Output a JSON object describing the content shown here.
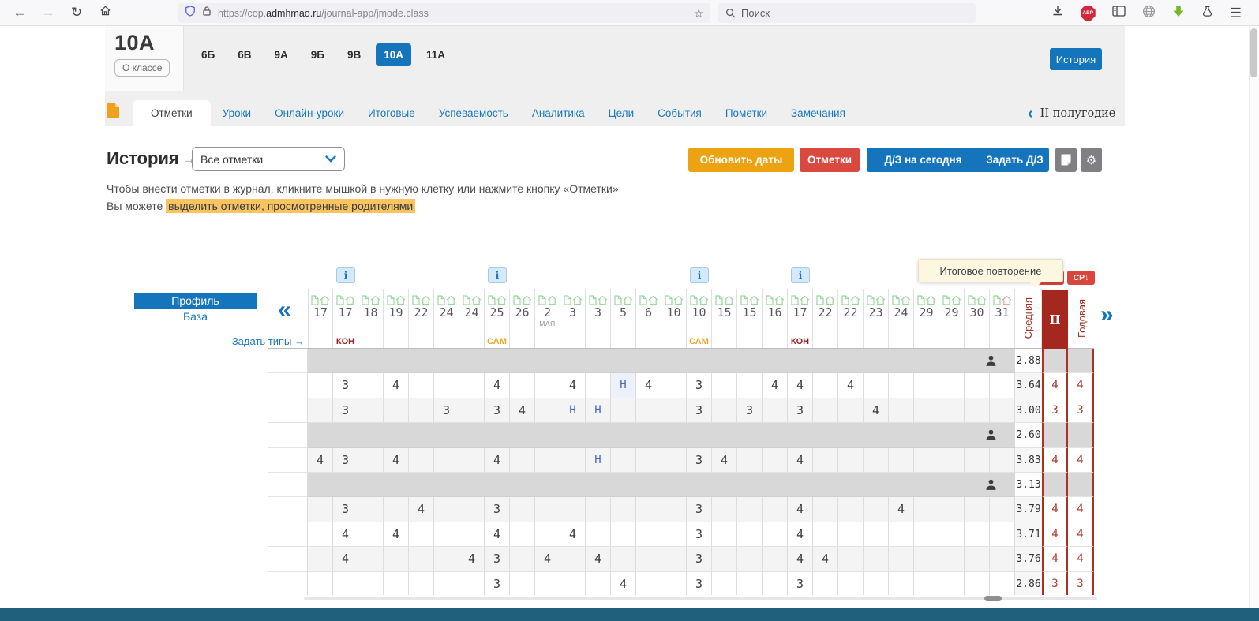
{
  "browser": {
    "url_prefix": "https://cop.",
    "url_domain": "admhmao.ru",
    "url_path": "/journal-app/jmode.class",
    "search_placeholder": "Поиск",
    "adblock_label": "ABP"
  },
  "class_header": {
    "class_name": "10А",
    "about_button": "О классе",
    "classes": [
      "6Б",
      "6В",
      "9А",
      "9Б",
      "9В",
      "10А",
      "11А"
    ],
    "active_class": "10А",
    "history_button": "История"
  },
  "nav": {
    "tabs": [
      "Отметки",
      "Уроки",
      "Онлайн-уроки",
      "Итоговые",
      "Успеваемость",
      "Аналитика",
      "Цели",
      "События",
      "Пометки",
      "Замечания"
    ],
    "active_tab": "Отметки",
    "period_prev_icon": "‹",
    "period_label": "II полугодие"
  },
  "toolbar": {
    "subject_title": "История",
    "arrow": "→",
    "filter_value": "Все отметки",
    "update_dates_button": "Обновить даты",
    "marks_button": "Отметки",
    "homework_today_button": "Д/З на сегодня",
    "assign_homework_button": "Задать Д/З"
  },
  "hints": {
    "line1": "Чтобы внести отметки в журнал, кликните мышкой в нужную клетку или нажмите кнопку «Отметки»",
    "line2_prefix": "Вы можете ",
    "line2_highlight": "выделить отметки, просмотренные родителями"
  },
  "journal": {
    "group_toggle": {
      "profile": "Профиль",
      "base": "База"
    },
    "set_types_link": "Задать типы →",
    "prev_icon": "«",
    "next_icon": "»",
    "info_badge": "i",
    "tooltip": "Итоговое повторение",
    "sort_badge_hidden": "↓",
    "sort_badge": "СР↓",
    "avg_header": "Средняя",
    "period_header": "II",
    "year_header": "Годовая",
    "columns": [
      {
        "day": "17"
      },
      {
        "day": "17",
        "info": true,
        "type": "КОН"
      },
      {
        "day": "18"
      },
      {
        "day": "19"
      },
      {
        "day": "22"
      },
      {
        "day": "24"
      },
      {
        "day": "24"
      },
      {
        "day": "25",
        "info": true,
        "type": "САМ"
      },
      {
        "day": "26"
      },
      {
        "day": "2",
        "month": "МАЯ"
      },
      {
        "day": "3"
      },
      {
        "day": "3"
      },
      {
        "day": "5"
      },
      {
        "day": "6"
      },
      {
        "day": "10"
      },
      {
        "day": "10",
        "info": true,
        "type": "САМ"
      },
      {
        "day": "15"
      },
      {
        "day": "15"
      },
      {
        "day": "16"
      },
      {
        "day": "17",
        "info": true,
        "type": "КОН"
      },
      {
        "day": "22"
      },
      {
        "day": "22"
      },
      {
        "day": "23"
      },
      {
        "day": "24"
      },
      {
        "day": "29"
      },
      {
        "day": "29"
      },
      {
        "day": "30"
      },
      {
        "day": "31",
        "homeRed": true
      }
    ],
    "rows": [
      {
        "kind": "group",
        "avg": "2.88",
        "period": "",
        "year": ""
      },
      {
        "kind": "marks",
        "shade": false,
        "marks": {
          "2": "3",
          "4": "4",
          "8": "4",
          "11": "4",
          "13": "Н",
          "14": "4",
          "16": "3",
          "19": "4",
          "20": "4",
          "22": "4"
        },
        "avg": "3.64",
        "period": "4",
        "year": "4"
      },
      {
        "kind": "marks",
        "shade": true,
        "marks": {
          "2": "3",
          "6": "3",
          "8": "3",
          "9": "4",
          "11": "Н",
          "12": "Н",
          "16": "3",
          "18": "3",
          "20": "3",
          "23": "4"
        },
        "avg": "3.00",
        "period": "3",
        "year": "3"
      },
      {
        "kind": "group",
        "avg": "2.60",
        "period": "",
        "year": ""
      },
      {
        "kind": "marks",
        "shade": true,
        "marks": {
          "1": "4",
          "2": "3",
          "4": "4",
          "8": "4",
          "12": "Н",
          "16": "3",
          "17": "4",
          "20": "4"
        },
        "avg": "3.83",
        "period": "4",
        "year": "4"
      },
      {
        "kind": "group",
        "avg": "3.13",
        "period": "",
        "year": ""
      },
      {
        "kind": "marks",
        "shade": true,
        "marks": {
          "2": "3",
          "5": "4",
          "8": "3",
          "16": "3",
          "20": "4",
          "24": "4"
        },
        "avg": "3.79",
        "period": "4",
        "year": "4"
      },
      {
        "kind": "marks",
        "shade": false,
        "marks": {
          "2": "4",
          "4": "4",
          "8": "4",
          "11": "4",
          "16": "3",
          "20": "4"
        },
        "avg": "3.71",
        "period": "4",
        "year": "4"
      },
      {
        "kind": "marks",
        "shade": true,
        "marks": {
          "2": "4",
          "7": "4",
          "8": "3",
          "10": "4",
          "12": "4",
          "16": "3",
          "20": "4",
          "21": "4"
        },
        "avg": "3.76",
        "period": "4",
        "year": "4"
      },
      {
        "kind": "marks",
        "shade": false,
        "marks": {
          "8": "3",
          "13": "4",
          "16": "3",
          "20": "3"
        },
        "avg": "2.86",
        "period": "3",
        "year": "3"
      }
    ]
  },
  "colors": {
    "accent_blue": "#1474bc",
    "link_blue": "#1878be",
    "orange_button": "#eda211",
    "red_button": "#d9493f",
    "dark_red_column": "#a5281e",
    "kon_label": "#9b1c1c",
    "sam_label": "#f2a41d",
    "absent_mark": "#4a68c8",
    "highlight": "#f7c45f",
    "group_band": "#d8d8d8"
  }
}
